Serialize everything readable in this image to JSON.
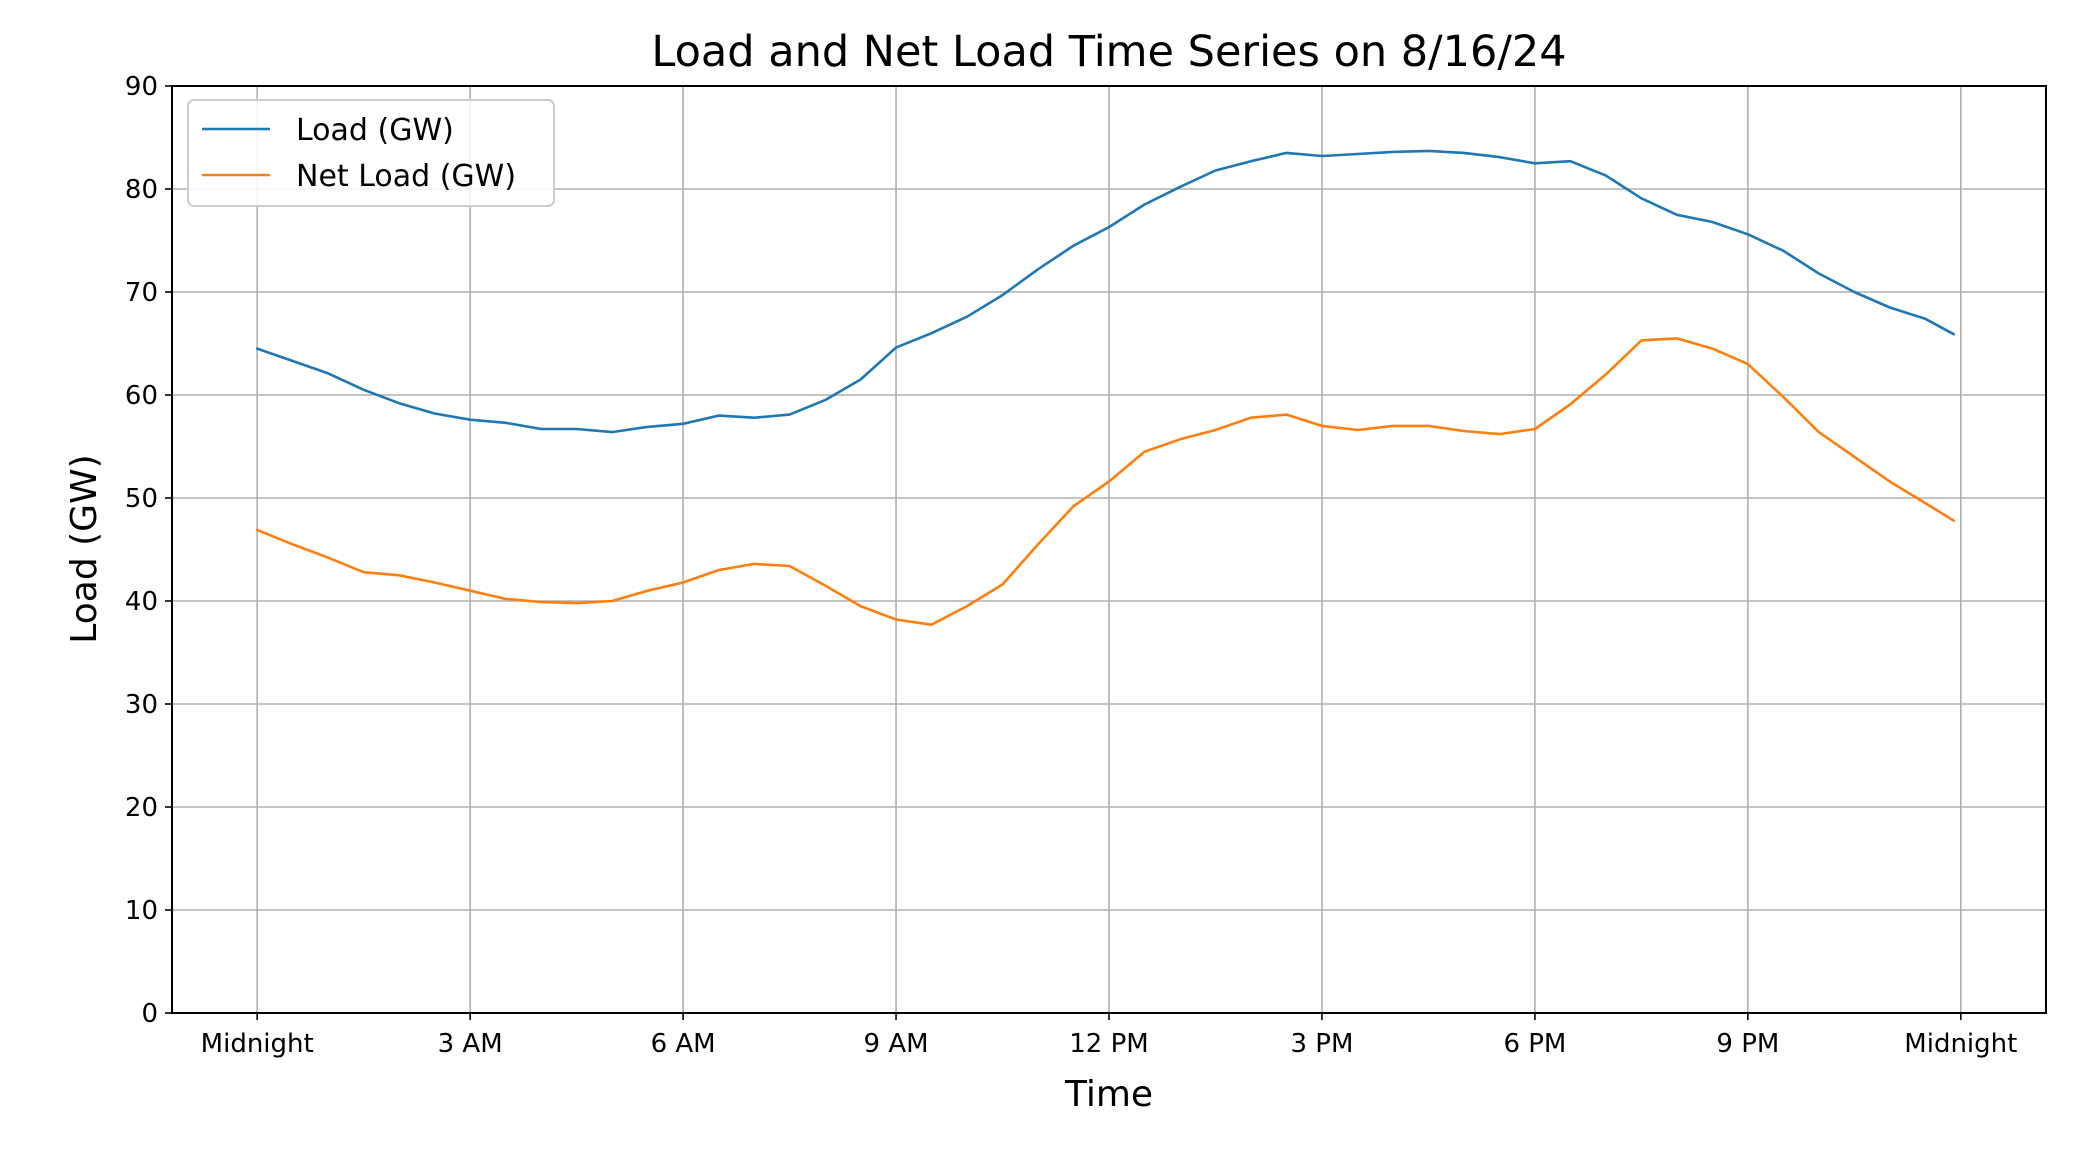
{
  "chart_data": {
    "type": "line",
    "title": "Load and Net Load Time Series on 8/16/24",
    "xlabel": "Time",
    "ylabel": "Load (GW)",
    "xlim_hours": [
      -1.2,
      25.2
    ],
    "ylim": [
      0,
      90
    ],
    "x_ticks": [
      {
        "hour": 0,
        "label": "Midnight"
      },
      {
        "hour": 3,
        "label": "3 AM"
      },
      {
        "hour": 6,
        "label": "6 AM"
      },
      {
        "hour": 9,
        "label": "9 AM"
      },
      {
        "hour": 12,
        "label": "12 PM"
      },
      {
        "hour": 15,
        "label": "3 PM"
      },
      {
        "hour": 18,
        "label": "6 PM"
      },
      {
        "hour": 21,
        "label": "9 PM"
      },
      {
        "hour": 24,
        "label": "Midnight"
      }
    ],
    "y_ticks": [
      0,
      10,
      20,
      30,
      40,
      50,
      60,
      70,
      80,
      90
    ],
    "grid": true,
    "legend_position": "upper-left",
    "hours": [
      0,
      0.5,
      1,
      1.5,
      2,
      2.5,
      3,
      3.5,
      4,
      4.5,
      5,
      5.5,
      6,
      6.5,
      7,
      7.5,
      8,
      8.5,
      9,
      9.5,
      10,
      10.5,
      11,
      11.5,
      12,
      12.5,
      13,
      13.5,
      14,
      14.5,
      15,
      15.5,
      16,
      16.5,
      17,
      17.5,
      18,
      18.5,
      19,
      19.5,
      20,
      20.5,
      21,
      21.5,
      22,
      22.5,
      23,
      23.5,
      23.9
    ],
    "series": [
      {
        "name": "Load (GW)",
        "color": "#1f77b4",
        "values": [
          64.5,
          63.3,
          62.1,
          60.5,
          59.2,
          58.2,
          57.6,
          57.3,
          56.7,
          56.7,
          56.4,
          56.9,
          57.2,
          58.0,
          57.8,
          58.1,
          59.5,
          61.5,
          64.6,
          66.0,
          67.6,
          69.7,
          72.2,
          74.5,
          76.3,
          78.5,
          80.2,
          81.8,
          82.7,
          83.5,
          83.2,
          83.4,
          83.6,
          83.7,
          83.5,
          83.1,
          82.5,
          82.7,
          81.3,
          79.1,
          77.5,
          76.8,
          75.6,
          74.0,
          71.8,
          70.0,
          68.5,
          67.4,
          65.9
        ]
      },
      {
        "name": "Net Load (GW)",
        "color": "#ff7f0e",
        "values": [
          46.9,
          45.5,
          44.2,
          42.8,
          42.5,
          41.8,
          41.0,
          40.2,
          39.9,
          39.8,
          40.0,
          41.0,
          41.8,
          43.0,
          43.6,
          43.4,
          41.5,
          39.5,
          38.2,
          37.7,
          39.5,
          41.6,
          45.5,
          49.2,
          51.6,
          54.5,
          55.7,
          56.6,
          57.8,
          58.1,
          57.0,
          56.6,
          57.0,
          57.0,
          56.5,
          56.2,
          56.7,
          59.1,
          62.0,
          65.3,
          65.5,
          64.5,
          63.0,
          59.8,
          56.4,
          54.0,
          51.6,
          49.5,
          47.8
        ]
      }
    ]
  }
}
